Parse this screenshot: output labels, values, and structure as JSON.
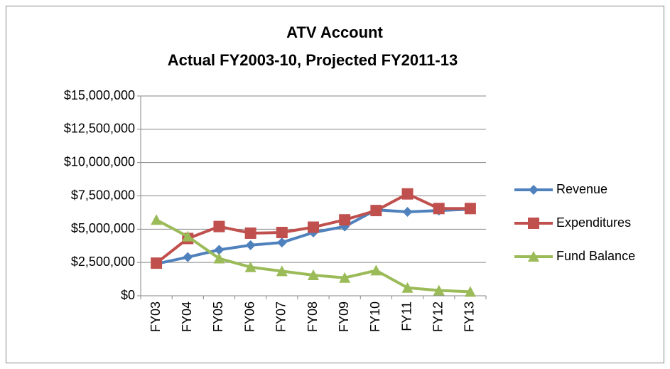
{
  "chart_data": {
    "type": "line",
    "title": "ATV Account",
    "subtitle": "Actual FY2003-10, Projected FY2011-13",
    "categories": [
      "FY03",
      "FY04",
      "FY05",
      "FY06",
      "FY07",
      "FY08",
      "FY09",
      "FY10",
      "FY11",
      "FY12",
      "FY13"
    ],
    "series": [
      {
        "name": "Revenue",
        "color": "#4f81bd",
        "marker": "diamond",
        "values": [
          2400000,
          2900000,
          3450000,
          3800000,
          4000000,
          4750000,
          5200000,
          6450000,
          6300000,
          6400000,
          6500000
        ]
      },
      {
        "name": "Expenditures",
        "color": "#c0504d",
        "marker": "square",
        "values": [
          2450000,
          4300000,
          5200000,
          4700000,
          4750000,
          5150000,
          5700000,
          6400000,
          7650000,
          6550000,
          6550000
        ]
      },
      {
        "name": "Fund Balance",
        "color": "#9bbb59",
        "marker": "triangle",
        "values": [
          5700000,
          4450000,
          2800000,
          2150000,
          1850000,
          1550000,
          1350000,
          1900000,
          600000,
          400000,
          300000
        ]
      }
    ],
    "ylim": [
      0,
      15000000
    ],
    "yticks": [
      {
        "value": 0,
        "label": "$0"
      },
      {
        "value": 2500000,
        "label": "$2,500,000"
      },
      {
        "value": 5000000,
        "label": "$5,000,000"
      },
      {
        "value": 7500000,
        "label": "$7,500,000"
      },
      {
        "value": 10000000,
        "label": "$10,000,000"
      },
      {
        "value": 12500000,
        "label": "$12,500,000"
      },
      {
        "value": 15000000,
        "label": "$15,000,000"
      }
    ],
    "grid": true,
    "legend": "right"
  }
}
